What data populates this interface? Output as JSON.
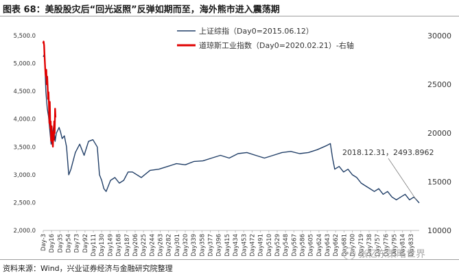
{
  "title": "图表 68：美股股灾后“回光返照”反弹如期而至，海外熊市进入震荡期",
  "source": "资料来源：Wind，兴业证券经济与金融研究院整理",
  "watermark": "张忆东策略世界",
  "colors": {
    "left_series": "#1f3d66",
    "right_series": "#e00000",
    "annotation": "#777777"
  },
  "chart_data": {
    "type": "line",
    "legend_position": "top-center",
    "grid": false,
    "left_axis": {
      "min": 2000,
      "max": 5500,
      "ticks": [
        "2,000.0",
        "2,500.0",
        "3,000.0",
        "3,500.0",
        "4,000.0",
        "4,500.0",
        "5,000.0",
        "5,500.0"
      ]
    },
    "right_axis": {
      "min": 10000,
      "max": 30000,
      "ticks": [
        "10000",
        "15000",
        "20000",
        "25000",
        "30000"
      ]
    },
    "x_ticks": [
      "Day-3",
      "Day16",
      "Day35",
      "Day54",
      "Day73",
      "Day92",
      "Day111",
      "Day130",
      "Day149",
      "Day168",
      "Day187",
      "Day206",
      "Day225",
      "Day244",
      "Day263",
      "Day282",
      "Day301",
      "Day320",
      "Day339",
      "Day358",
      "Day377",
      "Day396",
      "Day415",
      "Day434",
      "Day453",
      "Day472",
      "Day491",
      "Day510",
      "Day529",
      "Day548",
      "Day567",
      "Day586",
      "Day605",
      "Day624",
      "Day643",
      "Day662",
      "Day681",
      "Day700",
      "Day719",
      "Day738",
      "Day757",
      "Day776",
      "Day795",
      "Day814",
      "Day833"
    ],
    "annotation": {
      "text": "2018.12.31，2493.8962",
      "x": 852,
      "y": 2493.8962
    },
    "series": [
      {
        "name": "上证综指（Day0=2015.06.12）",
        "axis": "left",
        "x": [
          -3,
          0,
          3,
          6,
          9,
          12,
          15,
          18,
          21,
          24,
          27,
          30,
          33,
          36,
          40,
          45,
          50,
          55,
          60,
          70,
          80,
          90,
          100,
          110,
          120,
          125,
          130,
          135,
          140,
          150,
          160,
          170,
          180,
          190,
          200,
          220,
          240,
          260,
          280,
          300,
          320,
          340,
          360,
          380,
          400,
          420,
          440,
          460,
          480,
          500,
          520,
          540,
          560,
          580,
          600,
          620,
          640,
          650,
          655,
          660,
          670,
          680,
          690,
          700,
          710,
          720,
          730,
          740,
          750,
          760,
          770,
          780,
          790,
          800,
          810,
          820,
          830,
          840,
          852
        ],
        "y": [
          5120,
          5170,
          4500,
          4200,
          4050,
          3800,
          3550,
          3700,
          3900,
          3600,
          3750,
          3800,
          3850,
          3780,
          3650,
          3700,
          3500,
          3000,
          3100,
          3400,
          3550,
          3350,
          3600,
          3630,
          3500,
          3000,
          2900,
          2750,
          2700,
          2900,
          2950,
          2850,
          2900,
          3050,
          3050,
          2950,
          3080,
          3100,
          3150,
          3200,
          3180,
          3240,
          3250,
          3300,
          3350,
          3300,
          3380,
          3400,
          3350,
          3300,
          3350,
          3400,
          3420,
          3380,
          3400,
          3450,
          3520,
          3560,
          3300,
          3100,
          3150,
          3050,
          3100,
          3000,
          2950,
          2850,
          2800,
          2750,
          2700,
          2750,
          2650,
          2700,
          2600,
          2550,
          2600,
          2650,
          2550,
          2600,
          2494
        ]
      },
      {
        "name": "道琼斯工业指数（Day0=2020.02.21）-右轴",
        "axis": "right",
        "x": [
          -3,
          -2,
          -1,
          0,
          1,
          2,
          3,
          4,
          5,
          6,
          7,
          8,
          9,
          10,
          11,
          12,
          13,
          14,
          15,
          16,
          17,
          18,
          19,
          20,
          21,
          22,
          23,
          24,
          25
        ],
        "y": [
          29200,
          29400,
          29000,
          28000,
          27000,
          26200,
          25800,
          26500,
          25000,
          25800,
          24800,
          23500,
          24200,
          23000,
          21000,
          23200,
          20500,
          21200,
          19200,
          20700,
          19900,
          19000,
          18600,
          20100,
          19300,
          21200,
          20000,
          22500,
          21600
        ]
      }
    ]
  }
}
